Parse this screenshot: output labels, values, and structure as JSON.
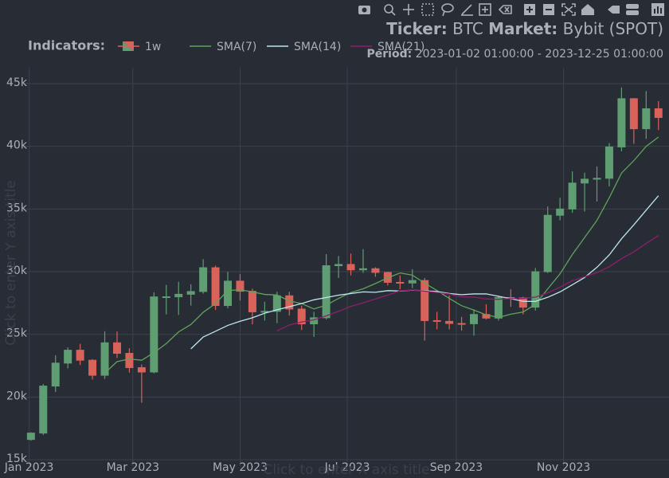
{
  "chart_data": {
    "type": "candlestick",
    "title": {
      "ticker_label": "Ticker:",
      "ticker": "BTC",
      "market_label": "Market:",
      "market": "Bybit (SPOT)"
    },
    "subtitle": {
      "period_label": "Period:",
      "period": "2023-01-02 01:00:00 - 2023-12-25 01:00:00"
    },
    "legend_title": "Indicators:",
    "xlabel": "Click to enter X axis title",
    "ylabel": "Click to enter Y axis title",
    "grid": true,
    "x": [
      "2023-01-02",
      "2023-01-09",
      "2023-01-16",
      "2023-01-23",
      "2023-01-30",
      "2023-02-06",
      "2023-02-13",
      "2023-02-20",
      "2023-02-27",
      "2023-03-06",
      "2023-03-13",
      "2023-03-20",
      "2023-03-27",
      "2023-04-03",
      "2023-04-10",
      "2023-04-17",
      "2023-04-24",
      "2023-05-01",
      "2023-05-08",
      "2023-05-15",
      "2023-05-22",
      "2023-05-29",
      "2023-06-05",
      "2023-06-12",
      "2023-06-19",
      "2023-06-26",
      "2023-07-03",
      "2023-07-10",
      "2023-07-17",
      "2023-07-24",
      "2023-07-31",
      "2023-08-07",
      "2023-08-14",
      "2023-08-21",
      "2023-08-28",
      "2023-09-04",
      "2023-09-11",
      "2023-09-18",
      "2023-09-25",
      "2023-10-02",
      "2023-10-09",
      "2023-10-16",
      "2023-10-23",
      "2023-10-30",
      "2023-11-06",
      "2023-11-13",
      "2023-11-20",
      "2023-11-27",
      "2023-12-04",
      "2023-12-11",
      "2023-12-18",
      "2023-12-25"
    ],
    "xlim": [
      "2022-12-29",
      "2023-12-31"
    ],
    "xticks": [
      {
        "value": "2023-01-01",
        "label": "Jan 2023"
      },
      {
        "value": "2023-03-01",
        "label": "Mar 2023"
      },
      {
        "value": "2023-05-01",
        "label": "May 2023"
      },
      {
        "value": "2023-07-01",
        "label": "Jul 2023"
      },
      {
        "value": "2023-09-01",
        "label": "Sep 2023"
      },
      {
        "value": "2023-11-01",
        "label": "Nov 2023"
      }
    ],
    "ylim": [
      14500,
      46270
    ],
    "yticks": [
      {
        "value": 15000,
        "label": "15k"
      },
      {
        "value": 20000,
        "label": "20k"
      },
      {
        "value": 25000,
        "label": "25k"
      },
      {
        "value": 30000,
        "label": "30k"
      },
      {
        "value": 35000,
        "label": "35k"
      },
      {
        "value": 40000,
        "label": "40k"
      },
      {
        "value": 45000,
        "label": "45k"
      }
    ],
    "series": [
      {
        "name": "1w",
        "type": "candlestick",
        "increasing_color": "#5e9e72",
        "decreasing_color": "#d9625a",
        "open": [
          16620,
          17130,
          20880,
          22710,
          23740,
          22940,
          21740,
          24330,
          23490,
          22350,
          22000,
          27990,
          28000,
          28200,
          28420,
          30320,
          27300,
          29250,
          28440,
          26800,
          26840,
          28080,
          27020,
          25840,
          26330,
          30480,
          30580,
          30150,
          30240,
          29940,
          29150,
          29100,
          29300,
          26100,
          26040,
          25870,
          25850,
          26590,
          26300,
          27940,
          27920,
          27170,
          30000,
          34500,
          35000,
          37070,
          37380,
          37450,
          39950,
          43800,
          41400,
          43000
        ],
        "high": [
          17200,
          21040,
          23340,
          23960,
          24250,
          23030,
          25250,
          25240,
          23900,
          22600,
          28350,
          28950,
          29200,
          29000,
          31000,
          30480,
          30000,
          29800,
          28650,
          27600,
          28400,
          28400,
          27300,
          26800,
          31400,
          31250,
          31450,
          31800,
          30350,
          30000,
          29700,
          30200,
          29500,
          26800,
          28100,
          26400,
          27000,
          27400,
          28100,
          28600,
          28000,
          30300,
          35200,
          35900,
          38000,
          37900,
          38400,
          40250,
          44700,
          43850,
          44400,
          43600
        ],
        "low": [
          16520,
          16980,
          20400,
          22290,
          22550,
          21400,
          21450,
          23120,
          21950,
          19550,
          21900,
          26600,
          26550,
          27300,
          28250,
          26950,
          27080,
          27700,
          25800,
          26100,
          25900,
          26500,
          25350,
          24800,
          26200,
          29500,
          29700,
          29900,
          29600,
          28900,
          28600,
          28700,
          24500,
          25400,
          25400,
          25300,
          24900,
          26200,
          26100,
          27200,
          26600,
          26900,
          29900,
          34100,
          34700,
          34800,
          35600,
          36800,
          39600,
          40200,
          40600,
          41300
        ],
        "close": [
          17130,
          20880,
          22710,
          23740,
          22940,
          21740,
          24330,
          23490,
          22350,
          22000,
          27990,
          28000,
          28200,
          28420,
          30320,
          27300,
          29250,
          28440,
          26800,
          26840,
          28080,
          27020,
          25840,
          26330,
          30480,
          30580,
          30150,
          30240,
          29940,
          29150,
          29100,
          29300,
          26100,
          26040,
          25870,
          25850,
          26590,
          26300,
          27940,
          27920,
          27170,
          30000,
          34500,
          35000,
          37070,
          37380,
          37450,
          39950,
          43800,
          41400,
          43000,
          42300
        ]
      },
      {
        "name": "SMA(7)",
        "type": "line",
        "color": "#5ea45a",
        "values": [
          null,
          null,
          null,
          null,
          null,
          null,
          21910,
          22830,
          23040,
          22940,
          23540,
          24270,
          25200,
          25790,
          26760,
          27460,
          28500,
          28560,
          28390,
          28190,
          28140,
          27670,
          27460,
          27030,
          27330,
          27870,
          28340,
          28640,
          29060,
          29510,
          29900,
          29730,
          29090,
          28500,
          27870,
          27290,
          26940,
          26560,
          26360,
          26610,
          26790,
          27390,
          28630,
          29830,
          31370,
          32730,
          34090,
          35900,
          37870,
          38860,
          40000,
          40740
        ]
      },
      {
        "name": "SMA(14)",
        "type": "line",
        "color": "#bde6ef",
        "values": [
          null,
          null,
          null,
          null,
          null,
          null,
          null,
          null,
          null,
          null,
          null,
          null,
          null,
          23850,
          24790,
          25250,
          25720,
          26050,
          26330,
          26690,
          26960,
          27210,
          27460,
          27760,
          27940,
          28130,
          28260,
          28390,
          28360,
          28490,
          28460,
          28530,
          28480,
          28420,
          28260,
          28170,
          28230,
          28230,
          28040,
          27850,
          27640,
          27630,
          27960,
          28390,
          28960,
          29540,
          30350,
          31340,
          32630,
          33740,
          34910,
          36060
        ]
      },
      {
        "name": "SMA(21)",
        "type": "line",
        "color": "#8e1f6e",
        "values": [
          null,
          null,
          null,
          null,
          null,
          null,
          null,
          null,
          null,
          null,
          null,
          null,
          null,
          null,
          null,
          null,
          null,
          null,
          null,
          null,
          25280,
          25750,
          25990,
          26160,
          26480,
          26840,
          27240,
          27520,
          27830,
          28140,
          28480,
          28540,
          28450,
          28340,
          28220,
          28000,
          27970,
          27830,
          27800,
          27860,
          27880,
          27970,
          28320,
          28760,
          29280,
          29600,
          29930,
          30400,
          31040,
          31590,
          32260,
          32890
        ]
      }
    ]
  }
}
